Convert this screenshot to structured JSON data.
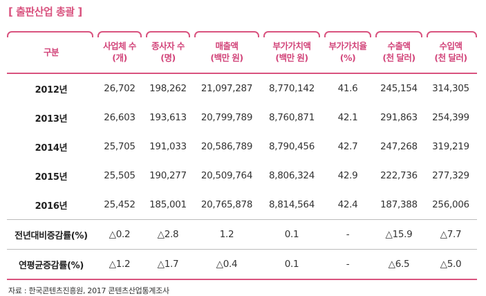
{
  "title": "[ 출판산업 총괄 ]",
  "headers": [
    {
      "line1": "구분",
      "line2": ""
    },
    {
      "line1": "사업체 수",
      "line2": "(개)"
    },
    {
      "line1": "종사자 수",
      "line2": "(명)"
    },
    {
      "line1": "매출액",
      "line2": "(백만 원)"
    },
    {
      "line1": "부가가치액",
      "line2": "(백만 원)"
    },
    {
      "line1": "부가가치율",
      "line2": "(%)"
    },
    {
      "line1": "수출액",
      "line2": "(천 달러)"
    },
    {
      "line1": "수입액",
      "line2": "(천 달러)"
    }
  ],
  "rows": [
    [
      "2012년",
      "26,702",
      "198,262",
      "21,097,287",
      "8,770,142",
      "41.6",
      "245,154",
      "314,305"
    ],
    [
      "2013년",
      "26,603",
      "193,613",
      "20,799,789",
      "8,760,871",
      "42.1",
      "291,863",
      "254,399"
    ],
    [
      "2014년",
      "25,705",
      "191,033",
      "20,586,789",
      "8,790,456",
      "42.7",
      "247,268",
      "319,219"
    ],
    [
      "2015년",
      "25,505",
      "190,277",
      "20,509,764",
      "8,806,324",
      "42.9",
      "222,736",
      "277,329"
    ],
    [
      "2016년",
      "25,452",
      "185,001",
      "20,765,878",
      "8,814,564",
      "42.4",
      "187,388",
      "256,006"
    ],
    [
      "전년대비증감률(%)",
      "△0.2",
      "△2.8",
      "1.2",
      "0.1",
      "-",
      "△15.9",
      "△7.7"
    ],
    [
      "연평균증감률(%)",
      "△1.2",
      "△1.7",
      "△0.4",
      "0.1",
      "-",
      "△6.5",
      "△5.0"
    ]
  ],
  "source": "자료 : 한국콘텐츠진흥원, 2017 콘텐츠산업통계조사"
}
